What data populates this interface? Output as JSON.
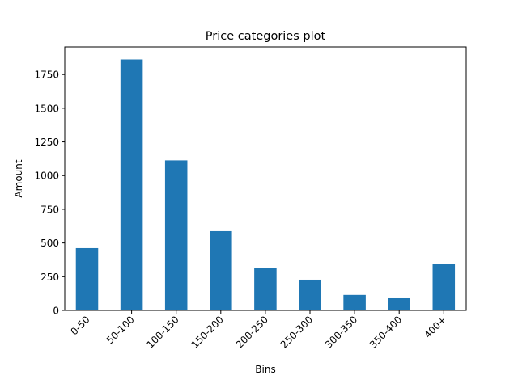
{
  "chart_data": {
    "type": "bar",
    "title": "Price categories plot",
    "xlabel": "Bins",
    "ylabel": "Amount",
    "categories": [
      "0-50",
      "50-100",
      "100-150",
      "150-200",
      "200-250",
      "250-300",
      "300-350",
      "350-400",
      "400+"
    ],
    "values": [
      462,
      1862,
      1113,
      588,
      312,
      228,
      115,
      90,
      342
    ],
    "ylim": [
      0,
      1955
    ],
    "yticks": [
      0,
      250,
      500,
      750,
      1000,
      1250,
      1500,
      1750
    ],
    "ytick_labels": [
      "0",
      "250",
      "500",
      "750",
      "1000",
      "1250",
      "1500",
      "1750"
    ],
    "xtick_rotation": 45,
    "bar_color": "#1f77b4",
    "grid": false,
    "legend": false
  }
}
